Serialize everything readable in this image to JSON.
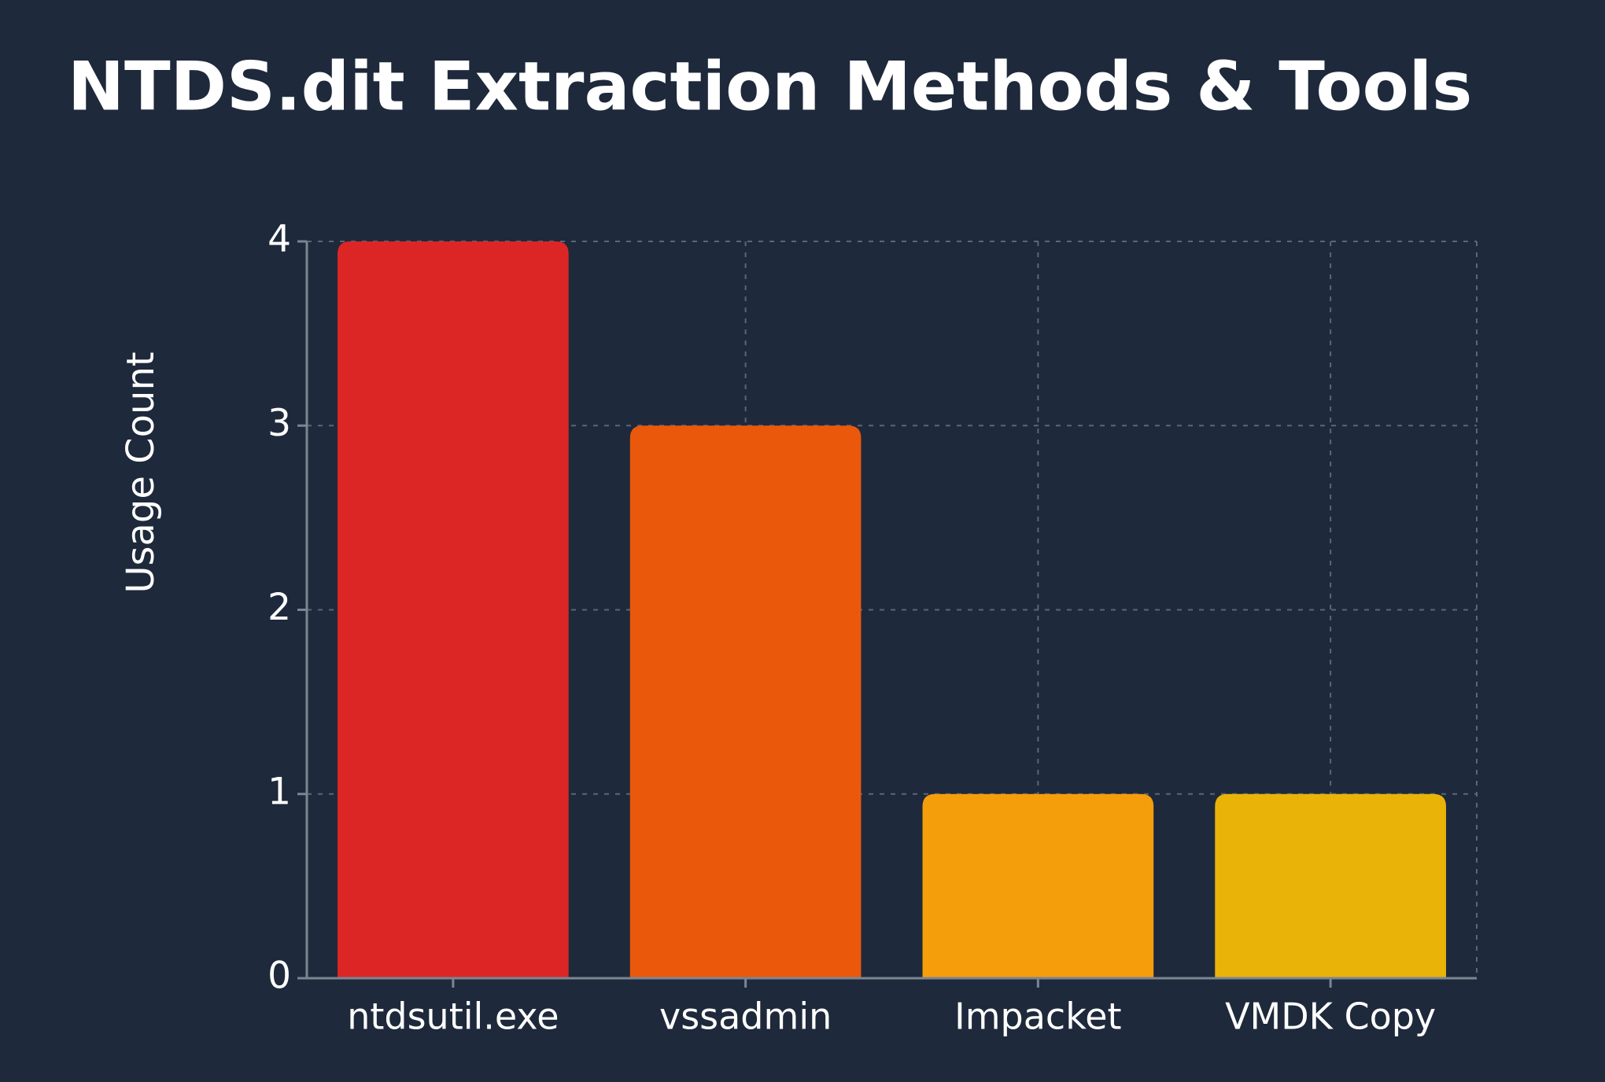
{
  "chart_data": {
    "type": "bar",
    "title": "NTDS.dit Extraction Methods & Tools",
    "y_label": "Usage Count",
    "categories": [
      "ntdsutil.exe",
      "vssadmin",
      "Impacket",
      "VMDK Copy"
    ],
    "values": [
      4,
      3,
      1,
      1
    ],
    "colors": [
      "#dc2626",
      "#ea580c",
      "#f59e0b",
      "#eab308"
    ],
    "ylim": [
      0,
      4
    ],
    "yticks": [
      0,
      1,
      2,
      3,
      4
    ],
    "grid": true
  }
}
